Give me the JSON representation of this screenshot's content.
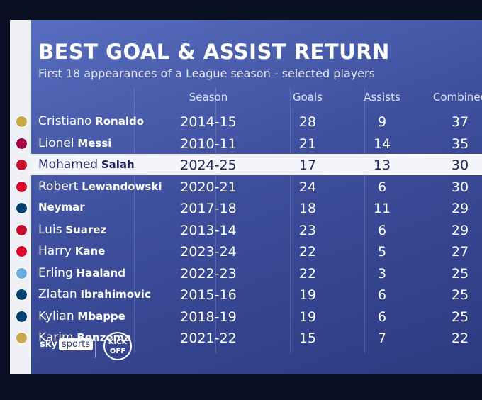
{
  "header": {
    "title": "BEST GOAL & ASSIST RETURN",
    "subtitle": "First 18 appearances of a League season - selected players"
  },
  "table": {
    "columns": [
      "Season",
      "Goals",
      "Assists",
      "Combined"
    ],
    "rows": [
      {
        "first": "Cristiano",
        "last": "Ronaldo",
        "season": "2014-15",
        "goals": 28,
        "assists": 9,
        "combined": 37
      },
      {
        "first": "Lionel",
        "last": "Messi",
        "season": "2010-11",
        "goals": 21,
        "assists": 14,
        "combined": 35
      },
      {
        "first": "Mohamed",
        "last": "Salah",
        "season": "2024-25",
        "goals": 17,
        "assists": 13,
        "combined": 30
      },
      {
        "first": "Robert",
        "last": "Lewandowski",
        "season": "2020-21",
        "goals": 24,
        "assists": 6,
        "combined": 30
      },
      {
        "first": "",
        "last": "Neymar",
        "season": "2017-18",
        "goals": 18,
        "assists": 11,
        "combined": 29
      },
      {
        "first": "Luis",
        "last": "Suarez",
        "season": "2013-14",
        "goals": 23,
        "assists": 6,
        "combined": 29
      },
      {
        "first": "Harry",
        "last": "Kane",
        "season": "2023-24",
        "goals": 22,
        "assists": 5,
        "combined": 27
      },
      {
        "first": "Erling",
        "last": "Haaland",
        "season": "2022-23",
        "goals": 22,
        "assists": 3,
        "combined": 25
      },
      {
        "first": "Zlatan",
        "last": "Ibrahimovic",
        "season": "2015-16",
        "goals": 19,
        "assists": 6,
        "combined": 25
      },
      {
        "first": "Kylian",
        "last": "Mbappe",
        "season": "2018-19",
        "goals": 19,
        "assists": 6,
        "combined": 25
      },
      {
        "first": "Karim",
        "last": "Benzema",
        "season": "2021-22",
        "goals": 15,
        "assists": 7,
        "combined": 22
      }
    ]
  },
  "footer": {
    "brand": [
      "sky",
      "sports"
    ],
    "show": [
      "KICK",
      "OFF"
    ]
  }
}
